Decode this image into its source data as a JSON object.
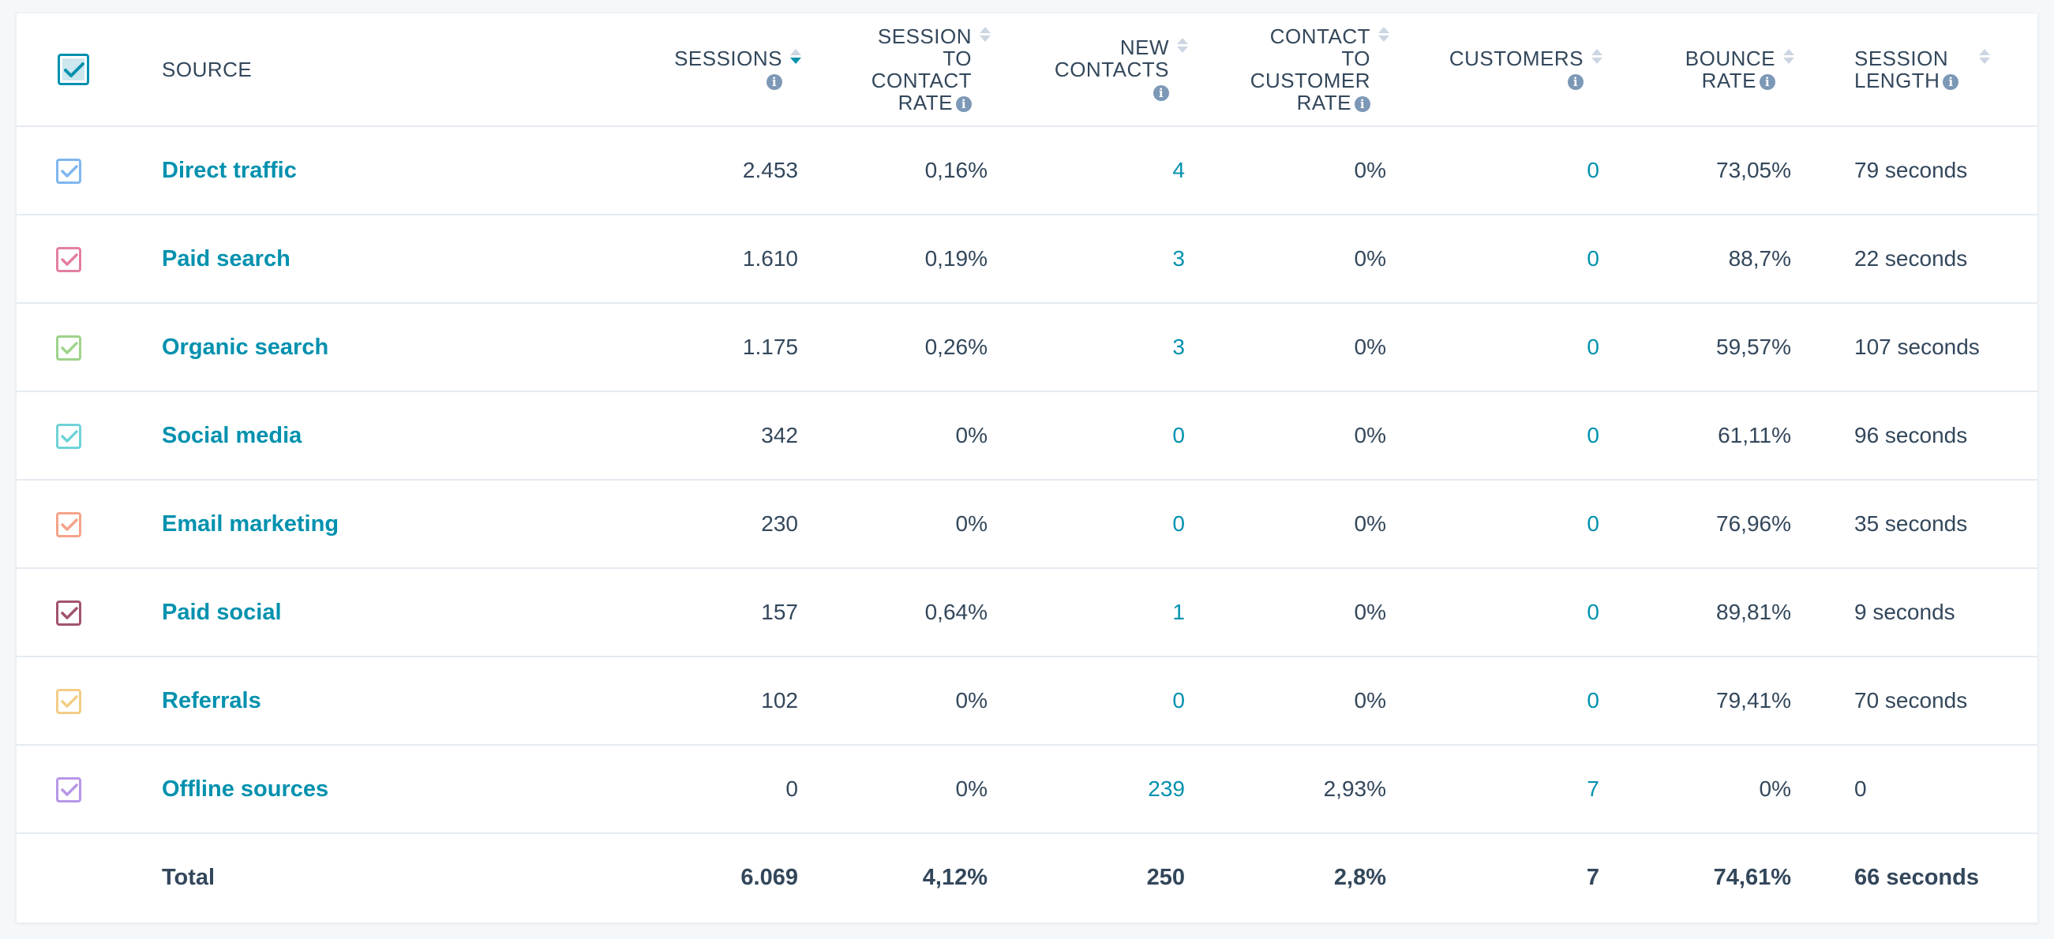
{
  "table": {
    "headers": {
      "source": "SOURCE",
      "sessions": "SESSIONS",
      "session_to_contact_rate": [
        "SESSION",
        "TO",
        "CONTACT",
        "RATE"
      ],
      "new_contacts": [
        "NEW",
        "CONTACTS"
      ],
      "contact_to_customer_rate": [
        "CONTACT",
        "TO",
        "CUSTOMER",
        "RATE"
      ],
      "customers": "CUSTOMERS",
      "bounce_rate": [
        "BOUNCE",
        "RATE"
      ],
      "session_length": [
        "SESSION",
        "LENGTH"
      ]
    },
    "sort": {
      "column": "sessions",
      "direction": "descending"
    },
    "rows": [
      {
        "source": "Direct traffic",
        "color": "#7fb7f0",
        "sessions": "2.453",
        "sctr": "0,16%",
        "new_contacts": "4",
        "ctcr": "0%",
        "customers": "0",
        "bounce_rate": "73,05%",
        "session_length": "79 seconds"
      },
      {
        "source": "Paid search",
        "color": "#e27fa2",
        "sessions": "1.610",
        "sctr": "0,19%",
        "new_contacts": "3",
        "ctcr": "0%",
        "customers": "0",
        "bounce_rate": "88,7%",
        "session_length": "22 seconds"
      },
      {
        "source": "Organic search",
        "color": "#9fd38b",
        "sessions": "1.175",
        "sctr": "0,26%",
        "new_contacts": "3",
        "ctcr": "0%",
        "customers": "0",
        "bounce_rate": "59,57%",
        "session_length": "107 seconds"
      },
      {
        "source": "Social media",
        "color": "#6fd3d7",
        "sessions": "342",
        "sctr": "0%",
        "new_contacts": "0",
        "ctcr": "0%",
        "customers": "0",
        "bounce_rate": "61,11%",
        "session_length": "96 seconds"
      },
      {
        "source": "Email marketing",
        "color": "#f6a38a",
        "sessions": "230",
        "sctr": "0%",
        "new_contacts": "0",
        "ctcr": "0%",
        "customers": "0",
        "bounce_rate": "76,96%",
        "session_length": "35 seconds"
      },
      {
        "source": "Paid social",
        "color": "#a2536d",
        "sessions": "157",
        "sctr": "0,64%",
        "new_contacts": "1",
        "ctcr": "0%",
        "customers": "0",
        "bounce_rate": "89,81%",
        "session_length": "9 seconds"
      },
      {
        "source": "Referrals",
        "color": "#f3cc86",
        "sessions": "102",
        "sctr": "0%",
        "new_contacts": "0",
        "ctcr": "0%",
        "customers": "0",
        "bounce_rate": "79,41%",
        "session_length": "70 seconds"
      },
      {
        "source": "Offline sources",
        "color": "#b797e8",
        "sessions": "0",
        "sctr": "0%",
        "new_contacts": "239",
        "ctcr": "2,93%",
        "customers": "7",
        "bounce_rate": "0%",
        "session_length": "0"
      }
    ],
    "total": {
      "label": "Total",
      "sessions": "6.069",
      "sctr": "4,12%",
      "new_contacts": "250",
      "ctcr": "2,8%",
      "customers": "7",
      "bounce_rate": "74,61%",
      "session_length": "66 seconds"
    }
  },
  "colors": {
    "accent": "#0091ae",
    "text": "#33475b",
    "header_checkbox": "#0091ae"
  },
  "icons": {
    "info": "info-icon",
    "sort": "sort-arrows-icon",
    "check": "checkmark-icon"
  }
}
